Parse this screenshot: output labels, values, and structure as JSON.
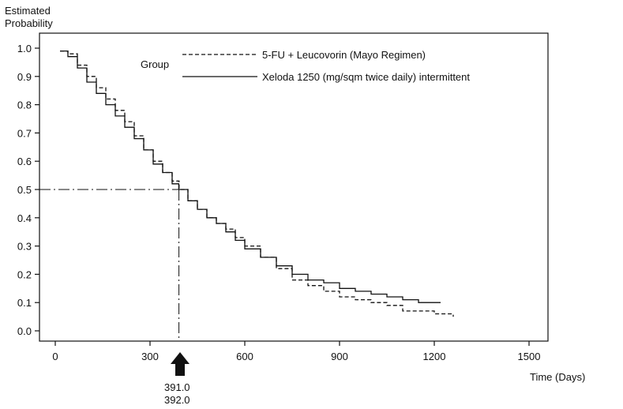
{
  "chart_data": {
    "type": "line",
    "title": "",
    "ylabel_line1": "Estimated",
    "ylabel_line2": "Probability",
    "xlabel": "Time (Days)",
    "xlim": [
      0,
      1500
    ],
    "ylim": [
      0.0,
      1.0
    ],
    "x_ticks": [
      0,
      300,
      600,
      900,
      1200,
      1500
    ],
    "x_tick_labels": [
      "0",
      "300",
      "600",
      "900",
      "1200",
      "1500"
    ],
    "y_ticks": [
      0.0,
      0.1,
      0.2,
      0.3,
      0.4,
      0.5,
      0.6,
      0.7,
      0.8,
      0.9,
      1.0
    ],
    "y_tick_labels": [
      "0.0",
      "0.1",
      "0.2",
      "0.3",
      "0.4",
      "0.5",
      "0.6",
      "0.7",
      "0.8",
      "0.9",
      "1.0"
    ],
    "grid": false,
    "legend": {
      "title": "Group",
      "placement": "top-center"
    },
    "series": [
      {
        "name": "5-FU + Leucovorin (Mayo Regimen)",
        "style": "dashed",
        "color": "#111111",
        "x": [
          15,
          40,
          70,
          100,
          130,
          160,
          190,
          220,
          250,
          280,
          310,
          340,
          370,
          392,
          420,
          450,
          480,
          510,
          540,
          570,
          600,
          650,
          700,
          750,
          800,
          850,
          900,
          950,
          1000,
          1050,
          1100,
          1150,
          1200,
          1260
        ],
        "y": [
          0.99,
          0.98,
          0.94,
          0.9,
          0.86,
          0.82,
          0.78,
          0.74,
          0.69,
          0.64,
          0.6,
          0.56,
          0.53,
          0.5,
          0.46,
          0.43,
          0.4,
          0.38,
          0.36,
          0.33,
          0.3,
          0.26,
          0.22,
          0.18,
          0.16,
          0.14,
          0.12,
          0.11,
          0.1,
          0.09,
          0.07,
          0.07,
          0.06,
          0.05
        ]
      },
      {
        "name": "Xeloda 1250 (mg/sqm twice daily) intermittent",
        "style": "solid",
        "color": "#111111",
        "x": [
          15,
          40,
          70,
          100,
          130,
          160,
          190,
          220,
          250,
          280,
          310,
          340,
          370,
          391,
          420,
          450,
          480,
          510,
          540,
          570,
          600,
          650,
          700,
          750,
          800,
          850,
          900,
          950,
          1000,
          1050,
          1100,
          1150,
          1220
        ],
        "y": [
          0.99,
          0.97,
          0.93,
          0.88,
          0.84,
          0.8,
          0.76,
          0.72,
          0.68,
          0.64,
          0.59,
          0.56,
          0.52,
          0.5,
          0.46,
          0.43,
          0.4,
          0.38,
          0.35,
          0.32,
          0.29,
          0.26,
          0.23,
          0.2,
          0.18,
          0.17,
          0.15,
          0.14,
          0.13,
          0.12,
          0.11,
          0.1,
          0.1
        ]
      }
    ],
    "median": {
      "probability": 0.5,
      "x": 391.5,
      "label_line1": "391.0",
      "label_line2": "392.0"
    }
  }
}
